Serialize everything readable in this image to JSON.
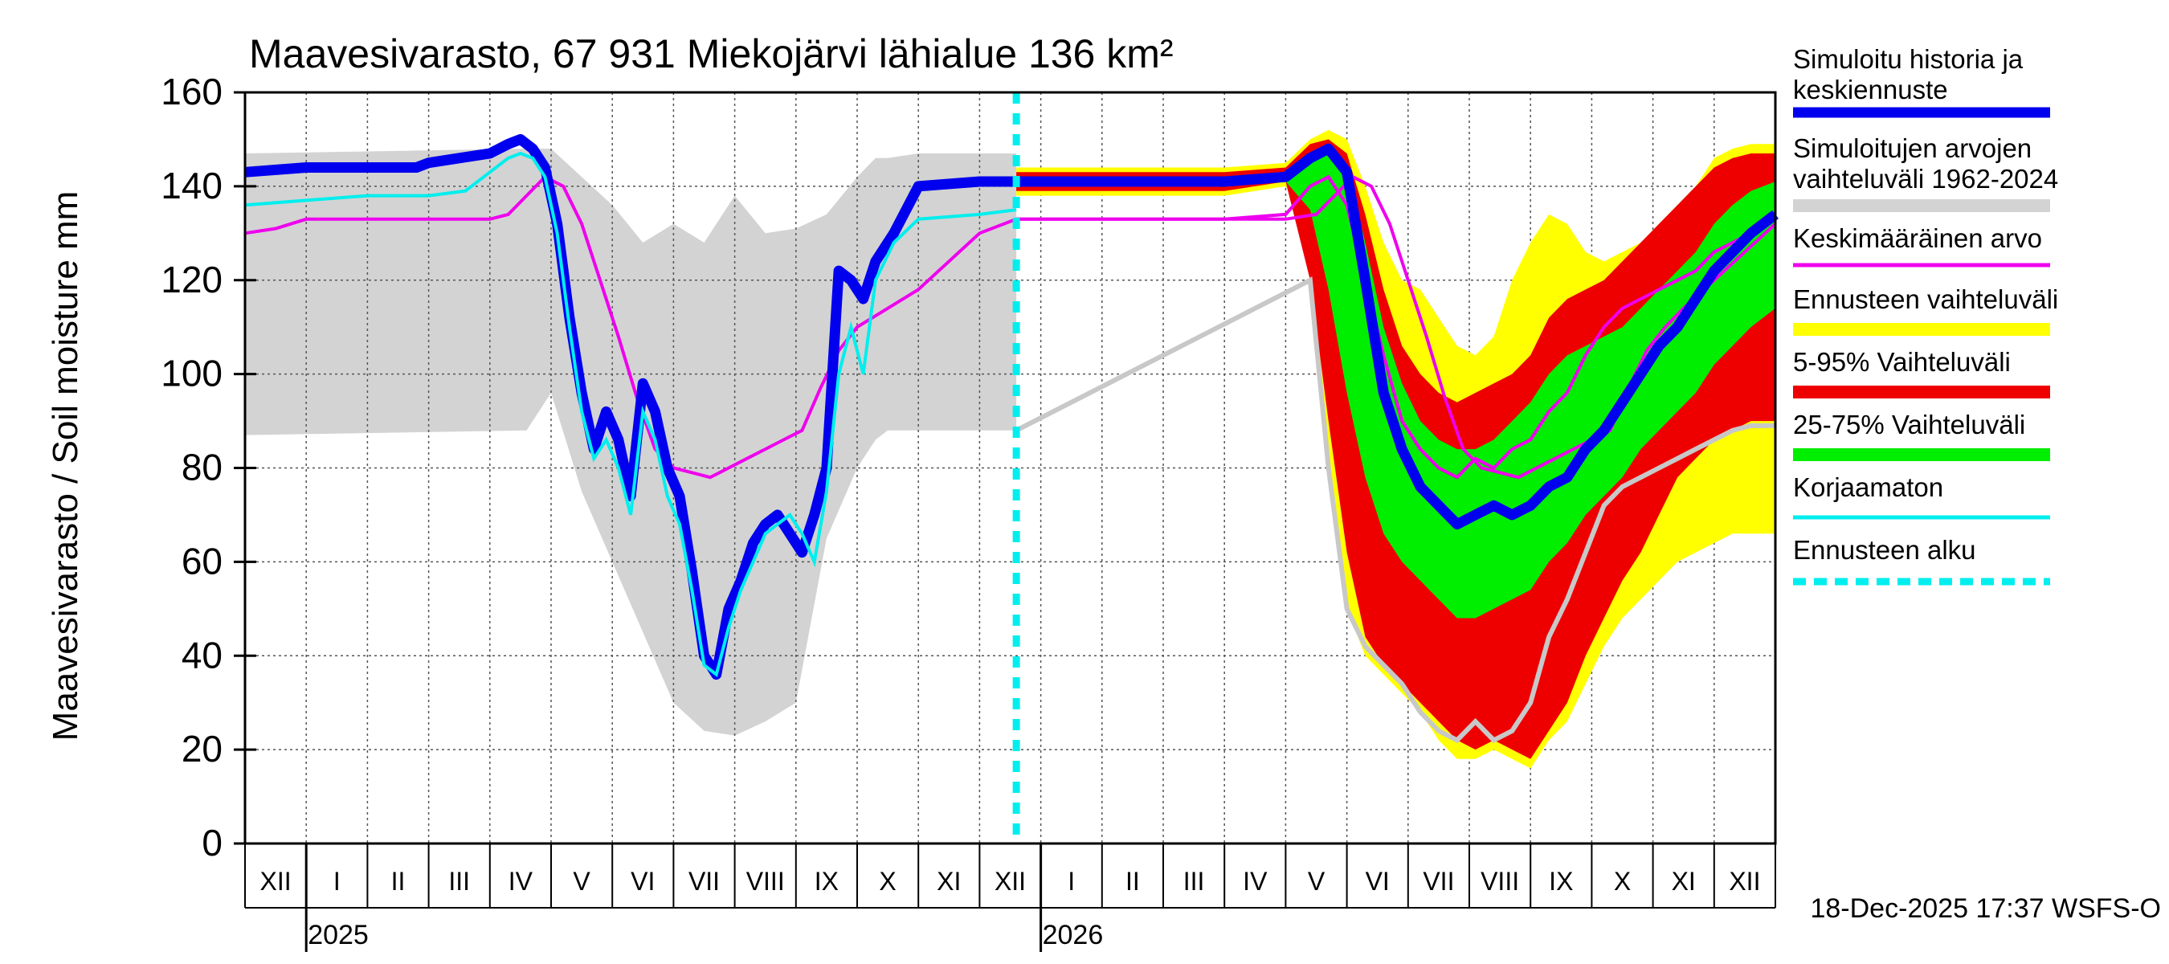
{
  "chart_data": {
    "type": "area",
    "title": "Maavesivarasto, 67 931 Miekojärvi lähialue 136 km²",
    "ylabel": "Maavesivarasto / Soil moisture   mm",
    "xlabel": "",
    "ylim": [
      0,
      160
    ],
    "yticks": [
      0,
      20,
      40,
      60,
      80,
      100,
      120,
      140,
      160
    ],
    "grid": true,
    "x_unit": "months since start of December 2024",
    "xlim": [
      0,
      25
    ],
    "forecast_start": 12.6,
    "month_labels": [
      "XII",
      "I",
      "II",
      "III",
      "IV",
      "V",
      "VI",
      "VII",
      "VIII",
      "IX",
      "X",
      "XI",
      "XII",
      "I",
      "II",
      "III",
      "IV",
      "V",
      "VI",
      "VII",
      "VIII",
      "IX",
      "X",
      "XI",
      "XII"
    ],
    "year_labels": [
      {
        "label": "2025",
        "x": 1
      },
      {
        "label": "2026",
        "x": 13
      }
    ],
    "footer": "18-Dec-2025 17:37 WSFS-O",
    "legend": {
      "placement": "right",
      "items": [
        {
          "label": "Simuloitu historia ja keskiennuste",
          "color": "#0000ee",
          "style": "line-thick"
        },
        {
          "label": "Simuloitujen arvojen vaihteluväli 1962-2024",
          "color": "#d3d3d3",
          "style": "band"
        },
        {
          "label": "Keskimääräinen arvo",
          "color": "#ee00ee",
          "style": "line"
        },
        {
          "label": "Ennusteen vaihteluväli",
          "color": "#ffff00",
          "style": "band"
        },
        {
          "label": "5-95% Vaihteluväli",
          "color": "#ee0000",
          "style": "band"
        },
        {
          "label": "25-75% Vaihteluväli",
          "color": "#00ee00",
          "style": "band"
        },
        {
          "label": "Korjaamaton",
          "color": "#00eeee",
          "style": "line"
        },
        {
          "label": "Ennusteen alku",
          "color": "#00eeee",
          "style": "dashed"
        }
      ]
    },
    "series": {
      "hist_band": {
        "name": "Simuloitujen arvojen vaihteluväli 1962-2024",
        "x": [
          0,
          4.6,
          5.0,
          5.5,
          6.0,
          6.5,
          7.0,
          7.5,
          8.0,
          8.5,
          9.0,
          9.5,
          10.0,
          10.3,
          10.5,
          11.0,
          12.0,
          12.6
        ],
        "upper": [
          147,
          148,
          148,
          142,
          136,
          128,
          132,
          128,
          138,
          130,
          131,
          134,
          142,
          146,
          146,
          147,
          147,
          147
        ],
        "lower": [
          87,
          88,
          96,
          75,
          60,
          45,
          30,
          24,
          23,
          26,
          30,
          65,
          80,
          86,
          88,
          88,
          88,
          88
        ]
      },
      "mean": {
        "name": "Keskimääräinen arvo",
        "x": [
          0,
          0.5,
          1,
          2,
          3,
          4,
          4.3,
          4.6,
          4.9,
          5.2,
          5.5,
          5.8,
          6.1,
          6.4,
          6.7,
          7.0,
          7.3,
          7.6,
          7.9,
          8.2,
          8.5,
          8.8,
          9.1,
          9.4,
          9.7,
          10.0,
          10.5,
          11.0,
          12.0,
          12.6,
          13,
          14,
          15,
          16,
          17,
          17.5,
          17.8,
          18.1,
          18.4,
          18.7,
          19.0,
          19.3,
          19.6,
          19.9,
          20.2,
          20.5,
          20.8,
          21.1,
          21.4,
          21.7,
          22.0,
          22.3,
          22.6,
          22.9,
          23.2,
          23.5,
          24.0,
          24.5,
          25.0
        ],
        "values": [
          130,
          131,
          133,
          133,
          133,
          133,
          134,
          138,
          142,
          140,
          132,
          120,
          108,
          95,
          84,
          80,
          79,
          78,
          80,
          82,
          84,
          86,
          88,
          97,
          105,
          110,
          114,
          118,
          130,
          133,
          133,
          133,
          133,
          133,
          133,
          134,
          138,
          142,
          140,
          132,
          120,
          108,
          95,
          84,
          80,
          79,
          78,
          80,
          82,
          84,
          86,
          88,
          97,
          105,
          110,
          114,
          120,
          126,
          132
        ]
      },
      "corrected": {
        "name": "Simuloitu historia ja keskiennuste",
        "x": [
          0,
          1,
          2,
          2.8,
          3,
          3.5,
          4.0,
          4.3,
          4.5,
          4.7,
          4.9,
          5.1,
          5.3,
          5.5,
          5.7,
          5.9,
          6.1,
          6.3,
          6.5,
          6.7,
          6.9,
          7.1,
          7.3,
          7.5,
          7.7,
          7.9,
          8.1,
          8.3,
          8.5,
          8.7,
          8.9,
          9.1,
          9.3,
          9.5,
          9.7,
          9.9,
          10.1,
          10.3,
          10.6,
          11.0,
          12.0,
          12.6
        ],
        "values": [
          143,
          144,
          144,
          144,
          145,
          146,
          147,
          149,
          150,
          148,
          144,
          132,
          112,
          96,
          84,
          92,
          86,
          74,
          98,
          92,
          80,
          74,
          58,
          40,
          36,
          50,
          56,
          64,
          68,
          70,
          66,
          62,
          70,
          80,
          122,
          120,
          116,
          124,
          130,
          140,
          141,
          141
        ]
      },
      "uncorrected": {
        "name": "Korjaamaton",
        "x": [
          0,
          1,
          2,
          3,
          3.6,
          4.0,
          4.3,
          4.5,
          4.7,
          4.9,
          5.1,
          5.3,
          5.5,
          5.7,
          5.9,
          6.1,
          6.3,
          6.5,
          6.7,
          6.9,
          7.1,
          7.3,
          7.5,
          7.7,
          7.9,
          8.1,
          8.3,
          8.5,
          8.7,
          8.9,
          9.1,
          9.3,
          9.5,
          9.7,
          9.9,
          10.1,
          10.3,
          10.6,
          11.0,
          12.0,
          12.6
        ],
        "values": [
          136,
          137,
          138,
          138,
          139,
          143,
          146,
          147,
          146,
          142,
          130,
          110,
          92,
          82,
          86,
          80,
          70,
          92,
          86,
          74,
          68,
          54,
          38,
          36,
          46,
          54,
          60,
          66,
          68,
          70,
          66,
          60,
          75,
          100,
          110,
          100,
          120,
          128,
          133,
          134,
          135
        ]
      },
      "fc_yellow": {
        "name": "Ennusteen vaihteluväli",
        "x": [
          12.6,
          13,
          14,
          15,
          16,
          17,
          17.4,
          17.7,
          18.0,
          18.3,
          18.6,
          18.9,
          19.2,
          19.5,
          19.8,
          20.1,
          20.4,
          20.7,
          21.0,
          21.3,
          21.6,
          21.9,
          22.2,
          22.5,
          22.8,
          23.1,
          23.4,
          23.7,
          24.0,
          24.3,
          24.6,
          25.0
        ],
        "upper": [
          144,
          144,
          144,
          144,
          144,
          145,
          150,
          152,
          150,
          140,
          128,
          120,
          118,
          112,
          106,
          104,
          108,
          120,
          128,
          134,
          132,
          126,
          124,
          126,
          128,
          132,
          136,
          140,
          146,
          148,
          149,
          149
        ],
        "lower": [
          138,
          138,
          138,
          138,
          138,
          140,
          130,
          80,
          50,
          40,
          36,
          32,
          28,
          22,
          18,
          18,
          20,
          18,
          16,
          22,
          26,
          34,
          42,
          48,
          52,
          56,
          60,
          62,
          64,
          66,
          66,
          66
        ]
      },
      "fc_red": {
        "name": "5-95% Vaihteluväli",
        "x": [
          12.6,
          13,
          14,
          15,
          16,
          17,
          17.4,
          17.7,
          18.0,
          18.3,
          18.6,
          18.9,
          19.2,
          19.5,
          19.8,
          20.1,
          20.4,
          20.7,
          21.0,
          21.3,
          21.6,
          21.9,
          22.2,
          22.5,
          22.8,
          23.1,
          23.4,
          23.7,
          24.0,
          24.3,
          24.6,
          25.0
        ],
        "upper": [
          143,
          143,
          143,
          143,
          143,
          144,
          149,
          150,
          147,
          134,
          118,
          106,
          100,
          96,
          94,
          96,
          98,
          100,
          104,
          112,
          116,
          118,
          120,
          124,
          128,
          132,
          136,
          140,
          144,
          146,
          147,
          147
        ],
        "lower": [
          139,
          139,
          139,
          139,
          139,
          141,
          120,
          90,
          62,
          44,
          38,
          34,
          30,
          26,
          22,
          20,
          22,
          20,
          18,
          24,
          30,
          40,
          48,
          56,
          62,
          70,
          78,
          82,
          86,
          88,
          90,
          90
        ]
      },
      "fc_green": {
        "name": "25-75% Vaihteluväli",
        "x": [
          12.6,
          13,
          14,
          15,
          16,
          17,
          17.4,
          17.7,
          18.0,
          18.3,
          18.6,
          18.9,
          19.2,
          19.5,
          19.8,
          20.1,
          20.4,
          20.7,
          21.0,
          21.3,
          21.6,
          21.9,
          22.2,
          22.5,
          22.8,
          23.1,
          23.4,
          23.7,
          24.0,
          24.3,
          24.6,
          25.0
        ],
        "upper": [
          142,
          142,
          142,
          142,
          142,
          143,
          147,
          148,
          144,
          128,
          110,
          98,
          90,
          86,
          84,
          84,
          86,
          90,
          94,
          100,
          104,
          106,
          108,
          110,
          114,
          118,
          122,
          126,
          132,
          136,
          139,
          141
        ],
        "lower": [
          140,
          140,
          140,
          140,
          140,
          141,
          135,
          118,
          96,
          78,
          66,
          60,
          56,
          52,
          48,
          48,
          50,
          52,
          54,
          60,
          64,
          70,
          74,
          78,
          84,
          88,
          92,
          96,
          102,
          106,
          110,
          114
        ]
      },
      "fc_median": {
        "name": "Simuloitu historia ja keskiennuste (ennuste)",
        "x": [
          12.6,
          13,
          14,
          15,
          16,
          17,
          17.4,
          17.7,
          18.0,
          18.3,
          18.6,
          18.9,
          19.2,
          19.5,
          19.8,
          20.1,
          20.4,
          20.7,
          21.0,
          21.3,
          21.6,
          21.9,
          22.2,
          22.5,
          22.8,
          23.1,
          23.4,
          23.7,
          24.0,
          24.3,
          24.6,
          25.0
        ],
        "values": [
          141,
          141,
          141,
          141,
          141,
          142,
          146,
          148,
          143,
          120,
          96,
          84,
          76,
          72,
          68,
          70,
          72,
          70,
          72,
          76,
          78,
          84,
          88,
          94,
          100,
          106,
          110,
          116,
          122,
          126,
          130,
          134
        ]
      },
      "fc_mean": {
        "name": "Keskimääräinen arvo (ennuste)",
        "x": [
          12.6,
          13,
          14,
          15,
          16,
          17,
          17.4,
          17.7,
          18.0,
          18.3,
          18.6,
          18.9,
          19.2,
          19.5,
          19.8,
          20.1,
          20.4,
          20.7,
          21.0,
          21.3,
          21.6,
          21.9,
          22.2,
          22.5,
          22.8,
          23.1,
          23.4,
          23.7,
          24.0,
          24.3,
          24.6,
          25.0
        ],
        "values": [
          133,
          133,
          133,
          133,
          133,
          134,
          140,
          142,
          136,
          120,
          104,
          90,
          84,
          80,
          78,
          82,
          80,
          84,
          86,
          92,
          96,
          104,
          110,
          114,
          116,
          118,
          120,
          122,
          126,
          128,
          130,
          133
        ]
      },
      "fc_lowgray": {
        "name": "Simuloitujen arvojen vaihteluväli (alaraja)",
        "x": [
          12.6,
          17.4,
          17.7,
          18.0,
          18.3,
          18.6,
          18.9,
          19.2,
          19.5,
          19.8,
          20.1,
          20.4,
          20.7,
          21.0,
          21.3,
          21.6,
          21.9,
          22.2,
          22.5,
          22.8,
          23.1,
          23.4,
          23.7,
          24.0,
          24.3,
          24.6,
          25.0
        ],
        "values": [
          88,
          120,
          80,
          50,
          42,
          38,
          34,
          28,
          24,
          22,
          26,
          22,
          24,
          30,
          44,
          52,
          62,
          72,
          76,
          78,
          80,
          82,
          84,
          86,
          88,
          89,
          89
        ]
      }
    }
  }
}
